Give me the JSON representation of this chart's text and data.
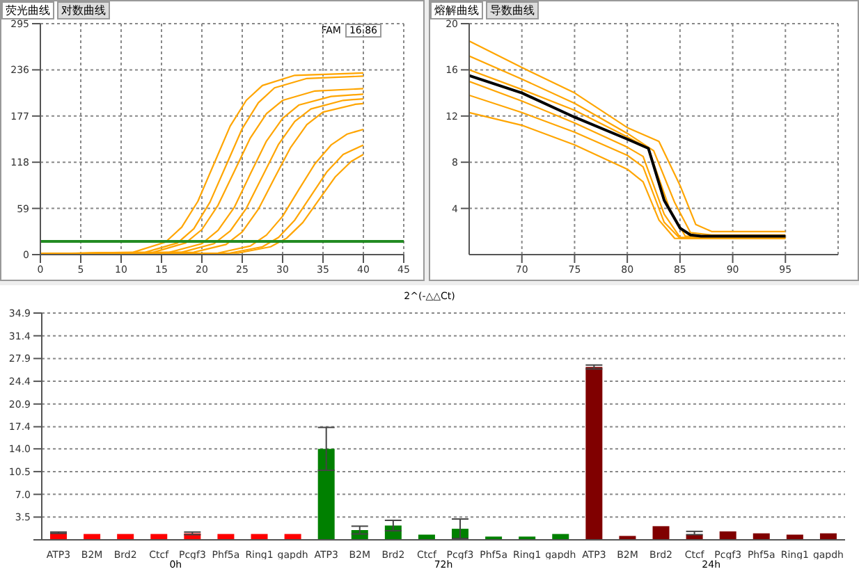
{
  "chart_data": [
    {
      "type": "line",
      "annotations": [
        "荧光曲线",
        "对数曲线",
        "FAM",
        "16.86"
      ],
      "xlim": [
        0,
        45
      ],
      "xticks": [
        0,
        5,
        10,
        15,
        20,
        25,
        30,
        35,
        40,
        45
      ],
      "ylim": [
        0,
        295
      ],
      "yticks": [
        0,
        59,
        118,
        177,
        236,
        295
      ],
      "grid": true,
      "marker": "none",
      "line_style": "solid",
      "ref_lines": [
        {
          "axis": "y",
          "value": 16.86,
          "color": "#228b22"
        }
      ],
      "series": [
        {
          "color": "#ffa500",
          "x": [
            0,
            11.5,
            15.5,
            17.5,
            19.5,
            21.5,
            23.5,
            25.5,
            27.5,
            31.5,
            40
          ],
          "values": [
            1,
            3,
            16,
            35,
            68,
            116,
            164,
            197,
            216,
            229,
            232
          ]
        },
        {
          "color": "#ffa500",
          "x": [
            0,
            13,
            17,
            19,
            21,
            23,
            25,
            27,
            29,
            33,
            40
          ],
          "values": [
            1,
            3,
            15,
            33,
            67,
            114,
            161,
            194,
            213,
            225,
            228
          ]
        },
        {
          "color": "#ffa500",
          "x": [
            0,
            14,
            18,
            20,
            22,
            24,
            26,
            28,
            30,
            34,
            40
          ],
          "values": [
            1,
            3,
            15,
            32,
            63,
            106,
            149,
            180,
            197,
            209,
            212
          ]
        },
        {
          "color": "#ffa500",
          "x": [
            0,
            16,
            20,
            22,
            24,
            26,
            28,
            30,
            32,
            36,
            40
          ],
          "values": [
            1,
            3,
            14,
            31,
            60,
            103,
            145,
            174,
            191,
            202,
            205
          ]
        },
        {
          "color": "#ffa500",
          "x": [
            0,
            17.5,
            21.5,
            23.5,
            25.5,
            27.5,
            29.5,
            31.5,
            33.5,
            37.5,
            40
          ],
          "values": [
            1,
            3,
            14,
            30,
            59,
            100,
            141,
            170,
            186,
            197,
            199
          ]
        },
        {
          "color": "#ffa500",
          "x": [
            0,
            19,
            23,
            25,
            27,
            29,
            31,
            33,
            35,
            39,
            40
          ],
          "values": [
            1,
            3,
            13,
            29,
            58,
            98,
            137,
            166,
            182,
            192,
            193
          ]
        },
        {
          "color": "#ffa500",
          "x": [
            0,
            22,
            26,
            28,
            30,
            32,
            34,
            36,
            38,
            40
          ],
          "values": [
            1,
            2,
            11,
            25,
            49,
            83,
            116,
            140,
            154,
            160
          ]
        },
        {
          "color": "#ffa500",
          "x": [
            0,
            23.5,
            27.5,
            29.5,
            31.5,
            33.5,
            35.5,
            37.5,
            40
          ],
          "values": [
            1,
            2,
            10,
            22,
            44,
            75,
            106,
            128,
            140
          ]
        },
        {
          "color": "#ffa500",
          "x": [
            0,
            24.5,
            28.5,
            30.5,
            32.5,
            34.5,
            36.5,
            38.5,
            40
          ],
          "values": [
            1,
            2,
            10,
            21,
            41,
            70,
            99,
            119,
            128
          ]
        }
      ]
    },
    {
      "type": "line",
      "annotations": [
        "熔解曲线",
        "导数曲线"
      ],
      "xlim": [
        65,
        100
      ],
      "xticks": [
        70,
        75,
        80,
        85,
        90,
        95
      ],
      "ylim": [
        0,
        20
      ],
      "yticks": [
        4,
        8,
        12,
        16,
        20
      ],
      "grid": true,
      "marker": "none",
      "line_style": "solid",
      "series": [
        {
          "color": "#ffa500",
          "x": [
            65,
            70,
            75,
            80,
            83,
            85,
            86.5,
            88,
            95
          ],
          "values": [
            18.5,
            16.2,
            14.0,
            11.0,
            9.8,
            6.0,
            2.6,
            2.0,
            2.0
          ]
        },
        {
          "color": "#ffa500",
          "x": [
            65,
            70,
            75,
            80,
            82.5,
            84.5,
            86,
            88,
            95
          ],
          "values": [
            17.2,
            15.2,
            13.1,
            10.5,
            9.0,
            4.5,
            1.9,
            1.7,
            1.7
          ]
        },
        {
          "color": "#ffa500",
          "x": [
            65,
            70,
            75,
            80,
            82,
            84,
            85.5,
            95
          ],
          "values": [
            16.0,
            14.3,
            12.5,
            10.2,
            9.2,
            4.0,
            1.6,
            1.5
          ]
        },
        {
          "color": "#ffa500",
          "x": [
            65,
            70,
            75,
            80,
            81.5,
            83.5,
            85,
            95
          ],
          "values": [
            15.0,
            13.3,
            11.4,
            9.3,
            8.5,
            3.5,
            1.5,
            1.4
          ]
        },
        {
          "color": "#ffa500",
          "x": [
            65,
            70,
            75,
            80,
            81.5,
            83.5,
            85,
            95
          ],
          "values": [
            13.8,
            12.3,
            10.6,
            8.6,
            7.6,
            2.8,
            1.4,
            1.4
          ]
        },
        {
          "color": "#ffa500",
          "x": [
            65,
            70,
            75,
            80,
            81.5,
            83,
            84.5,
            95
          ],
          "values": [
            12.3,
            11.2,
            9.5,
            7.4,
            6.3,
            3.0,
            1.4,
            1.4
          ]
        },
        {
          "color": "#000000",
          "x": [
            65,
            70,
            75,
            80,
            82,
            82.5,
            83.5,
            85,
            86,
            87,
            95
          ],
          "values": [
            15.5,
            14.0,
            11.9,
            10.0,
            9.2,
            7.7,
            4.7,
            2.3,
            1.7,
            1.6,
            1.6
          ]
        }
      ]
    },
    {
      "type": "bar",
      "title": "2^(-△△Ct)",
      "categories": [
        "ATP3",
        "B2M",
        "Brd2",
        "Ctcf",
        "Pcgf3",
        "Phf5a",
        "Ring1",
        "gapdh",
        "ATP3",
        "B2M",
        "Brd2",
        "Ctcf",
        "Pcgf3",
        "Phf5a",
        "Ring1",
        "gapdh",
        "ATP3",
        "B2M",
        "Brd2",
        "Ctcf",
        "Pcgf3",
        "Phf5a",
        "Ring1",
        "gapdh"
      ],
      "values": [
        1.1,
        0.9,
        0.9,
        0.9,
        1.0,
        0.9,
        0.9,
        0.9,
        14.0,
        1.5,
        2.2,
        0.8,
        1.7,
        0.5,
        0.5,
        0.9,
        26.6,
        0.6,
        2.1,
        0.8,
        1.3,
        1.0,
        0.8,
        1.0
      ],
      "errors": [
        0.1,
        null,
        null,
        null,
        0.2,
        null,
        null,
        null,
        3.3,
        0.6,
        0.8,
        null,
        1.5,
        null,
        null,
        null,
        0.3,
        null,
        null,
        [
          0.8,
          1.3
        ],
        null,
        null,
        null,
        null
      ],
      "colors": [
        "#ff0000",
        "#ff0000",
        "#ff0000",
        "#ff0000",
        "#ff0000",
        "#ff0000",
        "#ff0000",
        "#ff0000",
        "#008000",
        "#008000",
        "#008000",
        "#008000",
        "#008000",
        "#008000",
        "#008000",
        "#008000",
        "#800000",
        "#800000",
        "#800000",
        "#800000",
        "#800000",
        "#800000",
        "#800000",
        "#800000"
      ],
      "ylim": [
        0,
        34.9
      ],
      "yticks": [
        {
          "value": 0,
          "label": null
        },
        3.5,
        {
          "value": 7,
          "label": "7.0"
        },
        10.5,
        {
          "value": 14,
          "label": "14.0"
        },
        17.4,
        20.9,
        24.4,
        27.9,
        31.4,
        34.9
      ],
      "grid": "y",
      "annotations": [
        "0h",
        "72h",
        "24h"
      ]
    }
  ]
}
